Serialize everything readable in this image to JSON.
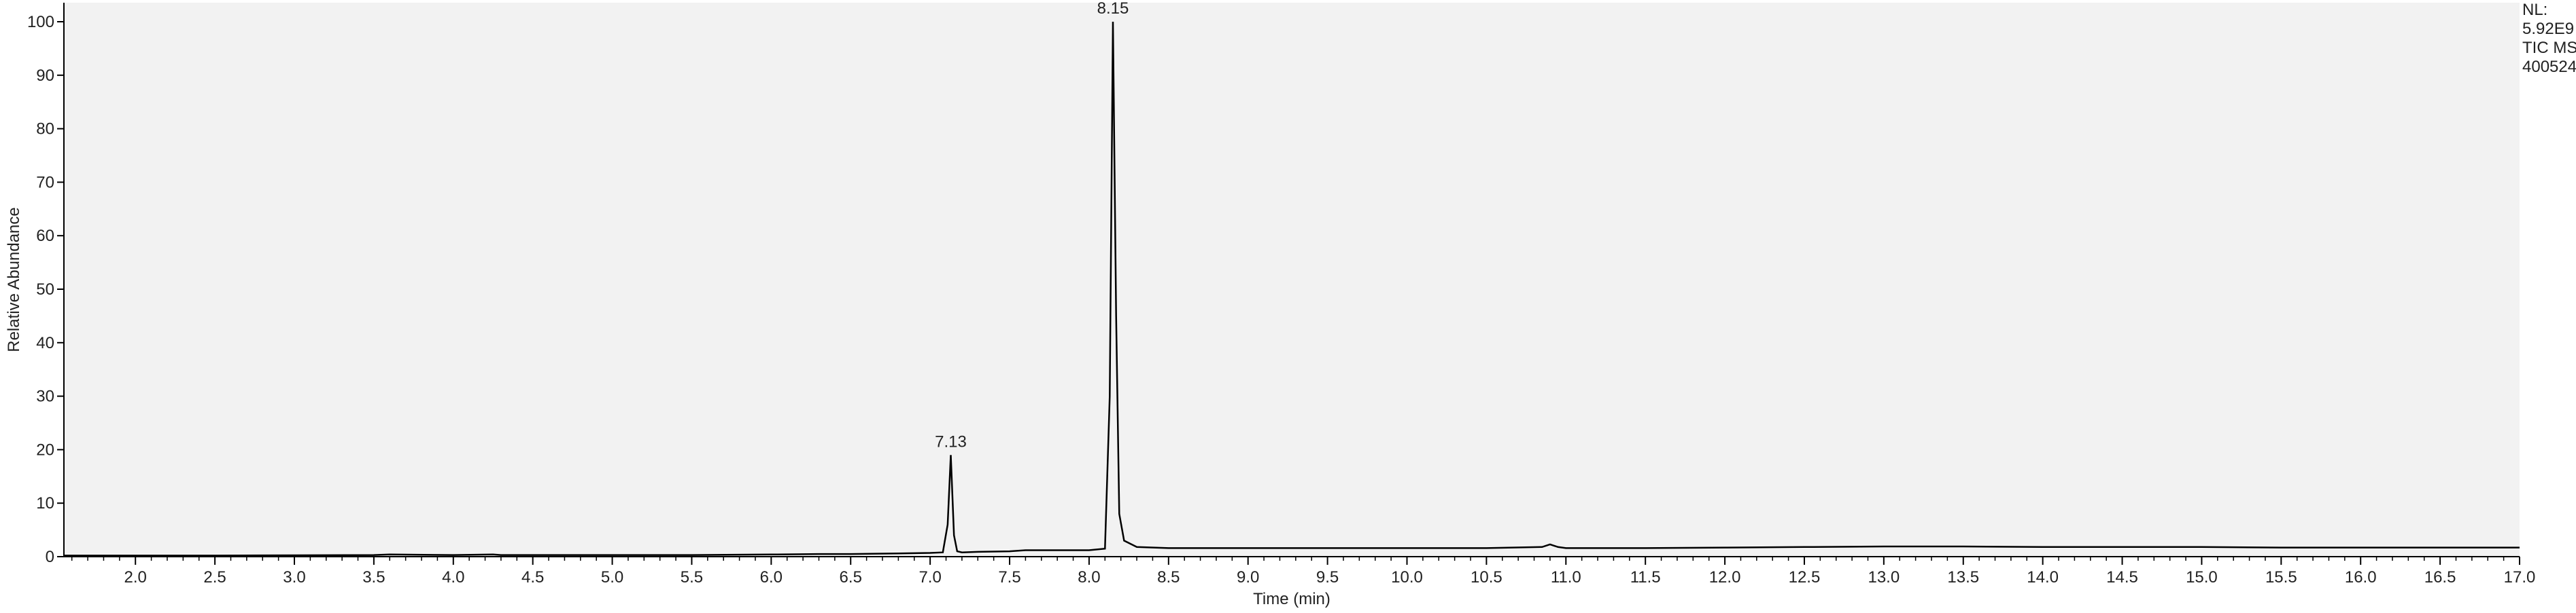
{
  "chart_data": {
    "type": "line",
    "xlabel": "Time (min)",
    "ylabel": "Relative Abundance",
    "xlim": [
      1.55,
      17.0
    ],
    "ylim": [
      0,
      103
    ],
    "x_ticks": [
      2.0,
      2.5,
      3.0,
      3.5,
      4.0,
      4.5,
      5.0,
      5.5,
      6.0,
      6.5,
      7.0,
      7.5,
      8.0,
      8.5,
      9.0,
      9.5,
      10.0,
      10.5,
      11.0,
      11.5,
      12.0,
      12.5,
      13.0,
      13.5,
      14.0,
      14.5,
      15.0,
      15.5,
      16.0,
      16.5,
      17.0
    ],
    "x_tick_labels": [
      "2.0",
      "2.5",
      "3.0",
      "3.5",
      "4.0",
      "4.5",
      "5.0",
      "5.5",
      "6.0",
      "6.5",
      "7.0",
      "7.5",
      "8.0",
      "8.5",
      "9.0",
      "9.5",
      "10.0",
      "10.5",
      "11.0",
      "11.5",
      "12.0",
      "12.5",
      "13.0",
      "13.5",
      "14.0",
      "14.5",
      "15.0",
      "15.5",
      "16.0",
      "16.5",
      "17.0"
    ],
    "y_ticks": [
      0,
      10,
      20,
      30,
      40,
      50,
      60,
      70,
      80,
      90,
      100
    ],
    "y_tick_labels": [
      "0",
      "10",
      "20",
      "30",
      "40",
      "50",
      "60",
      "70",
      "80",
      "90",
      "100"
    ],
    "grid": false,
    "plot_background": "#f2f2f2",
    "line_color": "#000000",
    "series": [
      {
        "x": [
          1.55,
          2.0,
          2.5,
          3.0,
          3.5,
          3.6,
          4.0,
          4.25,
          4.3,
          4.5,
          5.0,
          5.5,
          6.0,
          6.3,
          6.5,
          6.8,
          7.0,
          7.08,
          7.11,
          7.13,
          7.15,
          7.17,
          7.2,
          7.3,
          7.5,
          7.6,
          8.0,
          8.1,
          8.13,
          8.15,
          8.17,
          8.19,
          8.22,
          8.3,
          8.5,
          9.0,
          9.5,
          10.0,
          10.5,
          10.85,
          10.9,
          10.95,
          11.0,
          11.5,
          12.0,
          12.5,
          13.0,
          13.5,
          14.0,
          14.5,
          15.0,
          15.5,
          16.0,
          16.5,
          17.0
        ],
        "y": [
          0.2,
          0.2,
          0.2,
          0.25,
          0.3,
          0.4,
          0.3,
          0.4,
          0.3,
          0.3,
          0.3,
          0.3,
          0.4,
          0.5,
          0.5,
          0.6,
          0.7,
          0.8,
          6.0,
          19.0,
          4.0,
          1.0,
          0.8,
          0.9,
          1.0,
          1.2,
          1.2,
          1.5,
          30.0,
          100.0,
          45.0,
          8.0,
          3.0,
          1.8,
          1.6,
          1.6,
          1.6,
          1.6,
          1.6,
          1.8,
          2.3,
          1.8,
          1.6,
          1.6,
          1.7,
          1.8,
          1.9,
          1.9,
          1.8,
          1.8,
          1.8,
          1.7,
          1.7,
          1.7,
          1.7
        ]
      }
    ],
    "peak_labels": [
      {
        "x": 7.13,
        "y": 19.0,
        "text": "7.13"
      },
      {
        "x": 8.15,
        "y": 100.0,
        "text": "8.15"
      }
    ],
    "info_lines": [
      "NL:",
      "5.92E9",
      "TIC  MS",
      "400524"
    ]
  }
}
